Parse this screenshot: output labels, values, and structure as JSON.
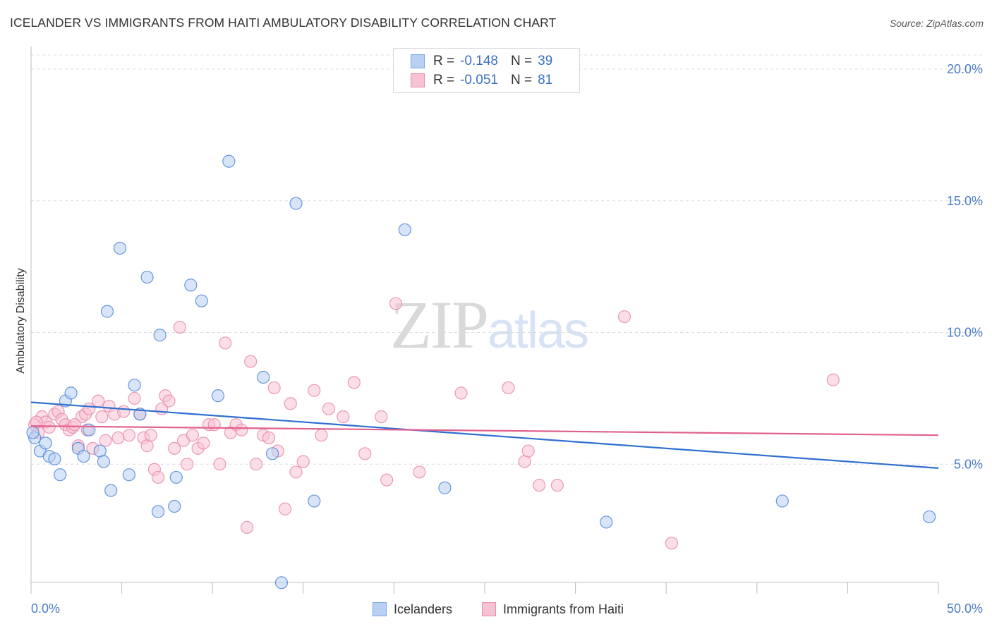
{
  "title": "ICELANDER VS IMMIGRANTS FROM HAITI AMBULATORY DISABILITY CORRELATION CHART",
  "source": "Source: ZipAtlas.com",
  "watermark": {
    "zip": "ZIP",
    "atlas": "atlas"
  },
  "legend_top": [
    {
      "r_key": "R =",
      "r_value": "-0.148",
      "n_key": "N =",
      "n_value": "39",
      "color": "#7aa6e6",
      "fill": "#b8d0f2"
    },
    {
      "r_key": "R =",
      "r_value": "-0.051",
      "n_key": "N =",
      "n_value": "81",
      "color": "#e88aaa",
      "fill": "#f7c3d4"
    }
  ],
  "legend_bottom": [
    {
      "label": "Icelanders",
      "color": "#7aa6e6",
      "fill": "#b8d0f2"
    },
    {
      "label": "Immigrants from Haiti",
      "color": "#e88aaa",
      "fill": "#f7c3d4"
    }
  ],
  "chart_data": {
    "type": "scatter",
    "title": "ICELANDER VS IMMIGRANTS FROM HAITI AMBULATORY DISABILITY CORRELATION CHART",
    "xlabel": "",
    "ylabel": "Ambulatory Disability",
    "xlim": [
      0,
      50
    ],
    "ylim": [
      0,
      20.5
    ],
    "x_tick_labels": [
      "0.0%",
      "50.0%"
    ],
    "y_ticks": [
      5,
      10,
      15,
      20
    ],
    "y_tick_labels": [
      "5.0%",
      "10.0%",
      "15.0%",
      "20.0%"
    ],
    "grid": true,
    "legend": "top-center",
    "series": [
      {
        "name": "Icelanders",
        "color": "#4f86d6",
        "fill": "#b8d0f2",
        "trend": {
          "x": [
            0,
            50
          ],
          "y": [
            7.35,
            4.85
          ],
          "color": "#2f6fcf"
        },
        "points": [
          [
            0.2,
            6.0
          ],
          [
            0.5,
            5.5
          ],
          [
            0.8,
            5.8
          ],
          [
            1.0,
            5.3
          ],
          [
            1.3,
            5.2
          ],
          [
            1.6,
            4.6
          ],
          [
            1.9,
            7.4
          ],
          [
            2.2,
            7.7
          ],
          [
            2.6,
            5.6
          ],
          [
            2.9,
            5.3
          ],
          [
            3.2,
            6.3
          ],
          [
            3.8,
            5.5
          ],
          [
            4.0,
            5.1
          ],
          [
            4.2,
            10.8
          ],
          [
            4.4,
            4.0
          ],
          [
            4.9,
            13.2
          ],
          [
            5.4,
            4.6
          ],
          [
            5.7,
            8.0
          ],
          [
            6.0,
            6.9
          ],
          [
            6.4,
            12.1
          ],
          [
            7.0,
            3.2
          ],
          [
            7.1,
            9.9
          ],
          [
            7.9,
            3.4
          ],
          [
            8.0,
            4.5
          ],
          [
            8.8,
            11.8
          ],
          [
            9.4,
            11.2
          ],
          [
            10.3,
            7.6
          ],
          [
            10.9,
            16.5
          ],
          [
            12.8,
            8.3
          ],
          [
            13.3,
            5.4
          ],
          [
            13.8,
            0.5
          ],
          [
            14.6,
            14.9
          ],
          [
            15.6,
            3.6
          ],
          [
            20.6,
            13.9
          ],
          [
            22.8,
            4.1
          ],
          [
            31.7,
            2.8
          ],
          [
            41.4,
            3.6
          ],
          [
            49.5,
            3.0
          ],
          [
            0.1,
            6.2
          ]
        ]
      },
      {
        "name": "Immigrants from Haiti",
        "color": "#e88aaa",
        "fill": "#f7c3d4",
        "trend": {
          "x": [
            0,
            50
          ],
          "y": [
            6.45,
            6.1
          ],
          "color": "#e06090"
        },
        "points": [
          [
            0.2,
            6.5
          ],
          [
            0.4,
            6.2
          ],
          [
            0.6,
            6.8
          ],
          [
            0.8,
            6.6
          ],
          [
            1.0,
            6.4
          ],
          [
            1.3,
            6.9
          ],
          [
            1.5,
            7.0
          ],
          [
            1.7,
            6.7
          ],
          [
            1.9,
            6.5
          ],
          [
            2.1,
            6.3
          ],
          [
            2.3,
            6.4
          ],
          [
            2.6,
            5.7
          ],
          [
            2.8,
            6.8
          ],
          [
            3.0,
            6.9
          ],
          [
            3.2,
            7.1
          ],
          [
            3.4,
            5.6
          ],
          [
            3.7,
            7.4
          ],
          [
            3.9,
            6.8
          ],
          [
            4.1,
            5.9
          ],
          [
            4.3,
            7.2
          ],
          [
            4.6,
            6.9
          ],
          [
            4.8,
            6.0
          ],
          [
            5.1,
            7.0
          ],
          [
            5.4,
            6.1
          ],
          [
            5.7,
            7.5
          ],
          [
            6.0,
            6.9
          ],
          [
            6.2,
            6.0
          ],
          [
            6.4,
            5.7
          ],
          [
            6.6,
            6.1
          ],
          [
            6.8,
            4.8
          ],
          [
            7.0,
            4.5
          ],
          [
            7.2,
            7.1
          ],
          [
            7.4,
            7.6
          ],
          [
            7.6,
            7.4
          ],
          [
            7.9,
            5.6
          ],
          [
            8.2,
            10.2
          ],
          [
            8.4,
            5.9
          ],
          [
            8.6,
            5.0
          ],
          [
            8.9,
            6.1
          ],
          [
            9.2,
            5.6
          ],
          [
            9.5,
            5.8
          ],
          [
            9.8,
            6.5
          ],
          [
            10.1,
            6.5
          ],
          [
            10.4,
            5.0
          ],
          [
            10.7,
            9.6
          ],
          [
            11.0,
            6.2
          ],
          [
            11.3,
            6.5
          ],
          [
            11.6,
            6.3
          ],
          [
            11.9,
            2.6
          ],
          [
            12.1,
            8.9
          ],
          [
            12.4,
            5.0
          ],
          [
            12.8,
            6.1
          ],
          [
            13.1,
            6.0
          ],
          [
            13.4,
            7.9
          ],
          [
            13.6,
            5.5
          ],
          [
            14.0,
            3.3
          ],
          [
            14.3,
            7.3
          ],
          [
            14.6,
            4.7
          ],
          [
            15.0,
            5.1
          ],
          [
            15.6,
            7.8
          ],
          [
            16.0,
            6.1
          ],
          [
            16.4,
            7.1
          ],
          [
            17.2,
            6.8
          ],
          [
            17.8,
            8.1
          ],
          [
            18.4,
            5.4
          ],
          [
            19.3,
            6.8
          ],
          [
            19.6,
            4.4
          ],
          [
            20.1,
            11.1
          ],
          [
            21.4,
            4.7
          ],
          [
            23.7,
            7.7
          ],
          [
            26.3,
            7.9
          ],
          [
            27.2,
            5.1
          ],
          [
            27.4,
            5.5
          ],
          [
            28.0,
            4.2
          ],
          [
            29.0,
            4.2
          ],
          [
            32.7,
            10.6
          ],
          [
            35.3,
            2.0
          ],
          [
            44.2,
            8.2
          ],
          [
            0.3,
            6.6
          ],
          [
            2.4,
            6.5
          ],
          [
            3.1,
            6.3
          ]
        ]
      }
    ]
  }
}
